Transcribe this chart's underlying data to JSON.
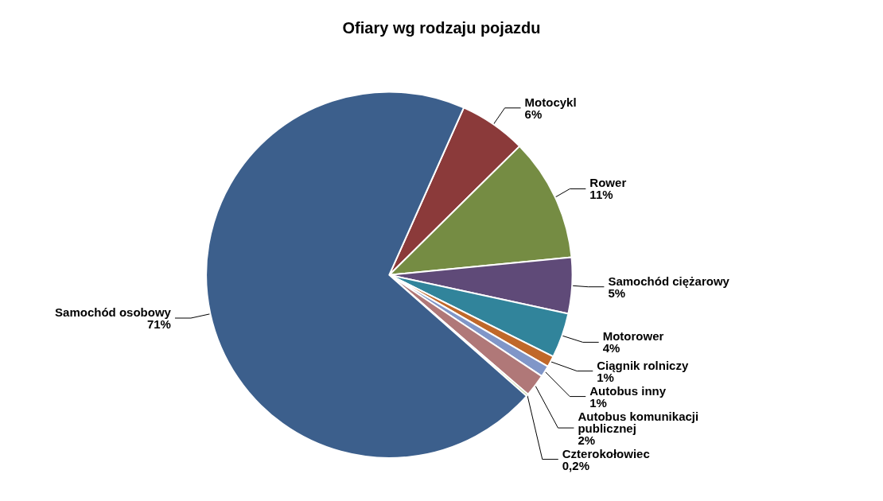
{
  "chart_data": {
    "type": "pie",
    "title": "Ofiary wg rodzaju pojazdu",
    "categories": [
      "Motocykl",
      "Rower",
      "Samochód ciężarowy",
      "Motorower",
      "Ciągnik rolniczy",
      "Autobus inny",
      "Autobus komunikacji publicznej",
      "Czterokołowiec",
      "Samochód osobowy"
    ],
    "values": [
      6,
      11,
      5,
      4,
      1,
      1,
      2,
      0.2,
      71
    ],
    "value_labels": [
      "6%",
      "11%",
      "5%",
      "4%",
      "1%",
      "1%",
      "2%",
      "0,2%",
      "71%"
    ],
    "colors": [
      "#8b3a3a",
      "#758c43",
      "#5f4a78",
      "#31849b",
      "#c0682a",
      "#8096c8",
      "#b07878",
      "#9bbb59",
      "#3c5f8c"
    ],
    "legend": false
  }
}
